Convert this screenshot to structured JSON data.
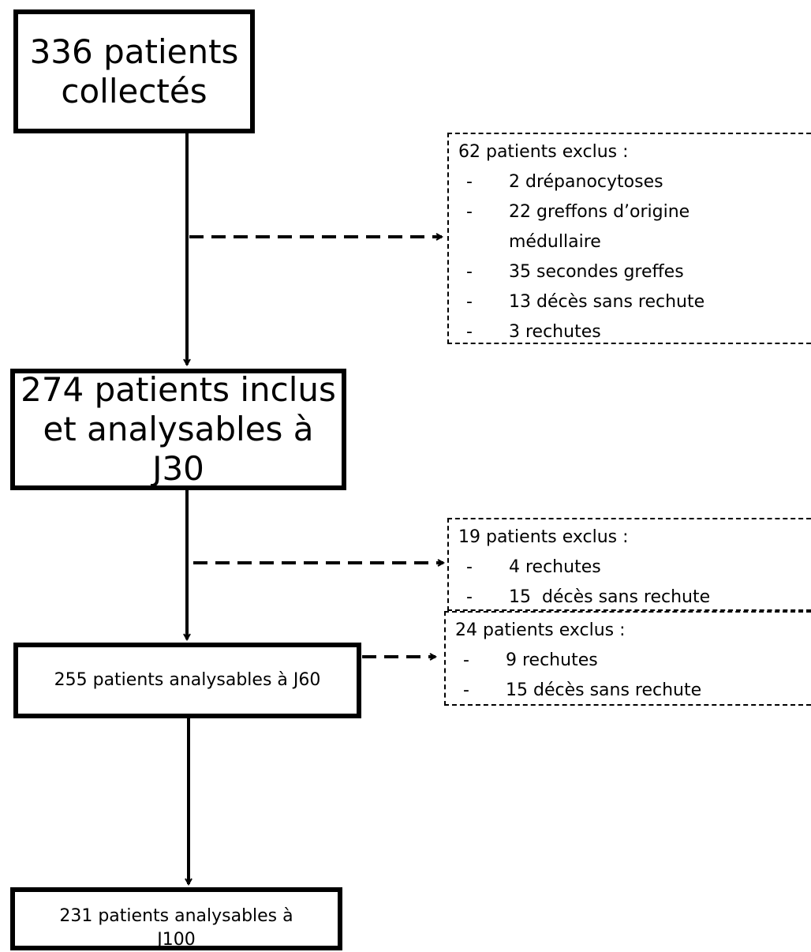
{
  "nodes": [
    {
      "lines": [
        "336 patients",
        "collectés"
      ]
    },
    {
      "lines": [
        "274 patients inclus",
        "et analysables à J30"
      ]
    },
    {
      "lines": [
        "255 patients analysables à J60"
      ]
    },
    {
      "lines": [
        "231 patients analysables à",
        "J100"
      ]
    }
  ],
  "exclusions": [
    {
      "title": "62 patients exclus :",
      "items": [
        "2 drépanocytoses",
        "22 greffons d’origine médullaire",
        "35 secondes greffes",
        "13 décès sans rechute",
        "3 rechutes"
      ]
    },
    {
      "title": "19 patients exclus :",
      "items": [
        "4 rechutes",
        "15  décès sans rechute"
      ]
    },
    {
      "title": "24 patients exclus :",
      "items": [
        "9 rechutes",
        "15 décès sans rechute"
      ]
    }
  ]
}
